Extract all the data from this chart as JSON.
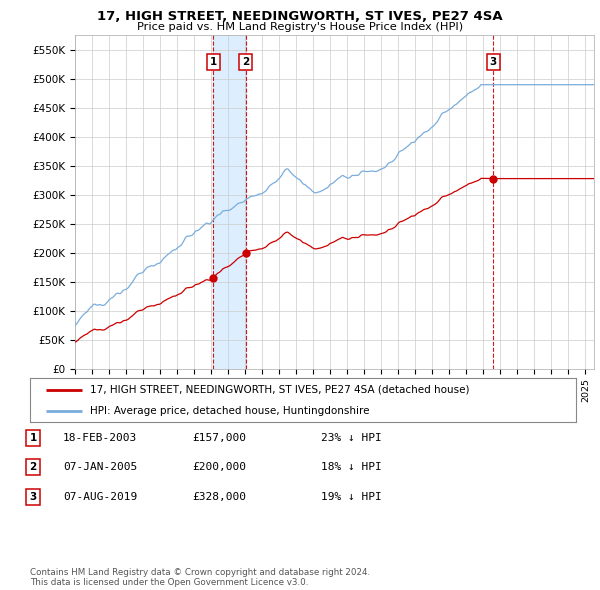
{
  "title": "17, HIGH STREET, NEEDINGWORTH, ST IVES, PE27 4SA",
  "subtitle": "Price paid vs. HM Land Registry's House Price Index (HPI)",
  "xlim_start": 1995.0,
  "xlim_end": 2025.5,
  "ylim_min": 0,
  "ylim_max": 575000,
  "yticks": [
    0,
    50000,
    100000,
    150000,
    200000,
    250000,
    300000,
    350000,
    400000,
    450000,
    500000,
    550000
  ],
  "ytick_labels": [
    "£0",
    "£50K",
    "£100K",
    "£150K",
    "£200K",
    "£250K",
    "£300K",
    "£350K",
    "£400K",
    "£450K",
    "£500K",
    "£550K"
  ],
  "sale_dates": [
    2003.12,
    2005.03,
    2019.59
  ],
  "sale_prices": [
    157000,
    200000,
    328000
  ],
  "sale_labels": [
    "1",
    "2",
    "3"
  ],
  "legend_red_label": "17, HIGH STREET, NEEDINGWORTH, ST IVES, PE27 4SA (detached house)",
  "legend_blue_label": "HPI: Average price, detached house, Huntingdonshire",
  "table_data": [
    [
      "1",
      "18-FEB-2003",
      "£157,000",
      "23% ↓ HPI"
    ],
    [
      "2",
      "07-JAN-2005",
      "£200,000",
      "18% ↓ HPI"
    ],
    [
      "3",
      "07-AUG-2019",
      "£328,000",
      "19% ↓ HPI"
    ]
  ],
  "footer": "Contains HM Land Registry data © Crown copyright and database right 2024.\nThis data is licensed under the Open Government Licence v3.0.",
  "red_color": "#cc0000",
  "blue_color": "#7aaddc",
  "span_color": "#ddeeff",
  "vline_color": "#cc0000",
  "grid_color": "#cccccc",
  "background_color": "#ffffff"
}
